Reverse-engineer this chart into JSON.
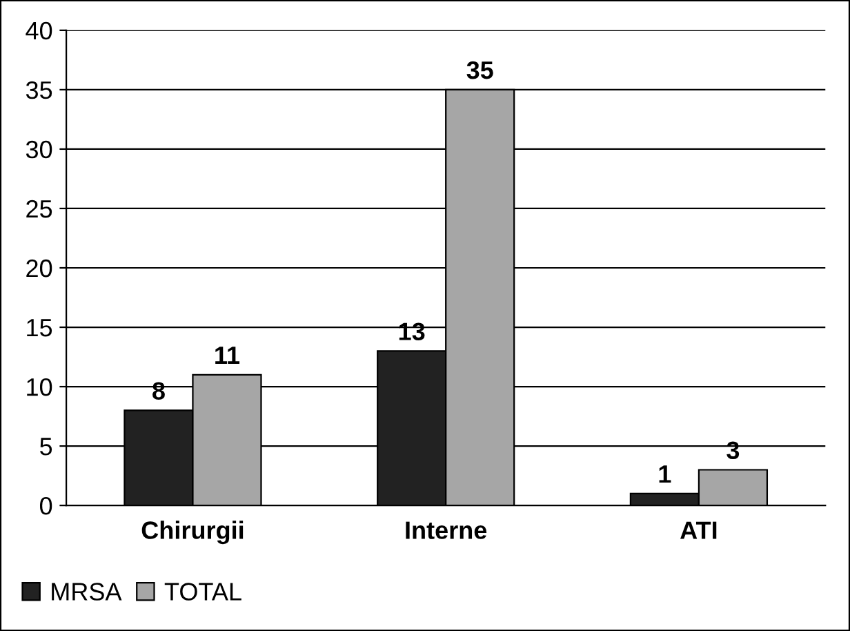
{
  "chart_data": {
    "type": "bar",
    "categories": [
      "Chirurgii",
      "Interne",
      "ATI"
    ],
    "series": [
      {
        "name": "MRSA",
        "color": "#222222",
        "values": [
          8,
          13,
          1
        ]
      },
      {
        "name": "TOTAL",
        "color": "#a6a6a6",
        "values": [
          11,
          35,
          3
        ]
      }
    ],
    "ylim": [
      0,
      40
    ],
    "yticks": [
      0,
      5,
      10,
      15,
      20,
      25,
      30,
      35,
      40
    ],
    "grid": "y",
    "legend": "bottom",
    "data_labels": true
  }
}
